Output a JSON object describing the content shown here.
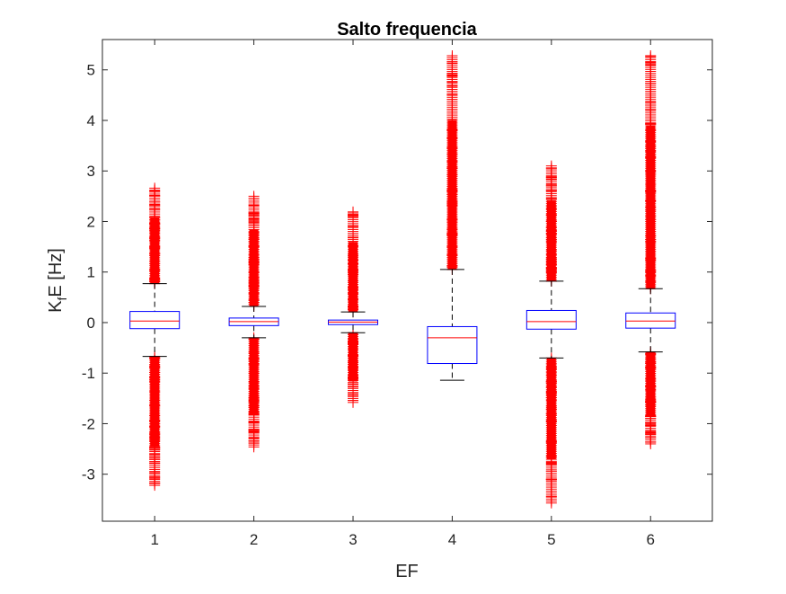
{
  "chart_data": {
    "type": "boxplot",
    "title": "Salto frequencia",
    "xlabel": "EF",
    "ylabel": {
      "main": "K",
      "sub": "f",
      "rest": "E [Hz]"
    },
    "categories": [
      "1",
      "2",
      "3",
      "4",
      "5",
      "6"
    ],
    "yticks": [
      "-3",
      "-2",
      "-1",
      "0",
      "1",
      "2",
      "3",
      "4",
      "5"
    ],
    "ylim": [
      -3.93,
      5.6
    ],
    "grid": false,
    "colors": {
      "box": "#0000ff",
      "median": "#ff0000",
      "whisker": "#000000",
      "outlier": "#ff0000",
      "axis": "#262626"
    },
    "boxes": [
      {
        "category": "1",
        "whisker_low": -0.67,
        "q1": -0.12,
        "median": 0.03,
        "q3": 0.22,
        "whisker_high": 0.77,
        "outliers_high": [
          0.77,
          2.66
        ],
        "outliers_low": [
          -3.22,
          -0.67
        ]
      },
      {
        "category": "2",
        "whisker_low": -0.3,
        "q1": -0.06,
        "median": 0.02,
        "q3": 0.09,
        "whisker_high": 0.32,
        "outliers_high": [
          0.32,
          2.5
        ],
        "outliers_low": [
          -2.46,
          -0.3
        ]
      },
      {
        "category": "3",
        "whisker_low": -0.2,
        "q1": -0.04,
        "median": 0.01,
        "q3": 0.05,
        "whisker_high": 0.21,
        "outliers_high": [
          0.21,
          2.19
        ],
        "outliers_low": [
          -1.58,
          -0.2
        ]
      },
      {
        "category": "4",
        "whisker_low": -1.14,
        "q1": -0.81,
        "median": -0.3,
        "q3": -0.08,
        "whisker_high": 1.05,
        "outliers_high": [
          1.05,
          5.28
        ],
        "outliers_low": []
      },
      {
        "category": "5",
        "whisker_low": -0.7,
        "q1": -0.13,
        "median": 0.02,
        "q3": 0.24,
        "whisker_high": 0.82,
        "outliers_high": [
          0.82,
          3.1
        ],
        "outliers_low": [
          -3.57,
          -0.7
        ]
      },
      {
        "category": "6",
        "whisker_low": -0.58,
        "q1": -0.11,
        "median": 0.03,
        "q3": 0.19,
        "whisker_high": 0.67,
        "outliers_high": [
          0.67,
          5.28
        ],
        "outliers_low": [
          -2.4,
          -0.58
        ]
      }
    ]
  }
}
